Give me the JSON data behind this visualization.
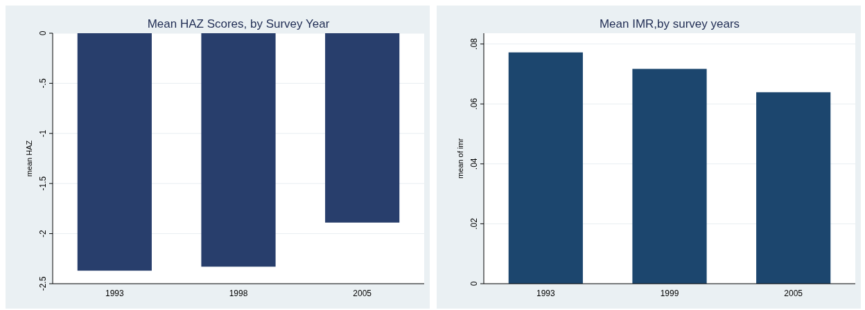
{
  "chart_data": [
    {
      "type": "bar",
      "title": "Mean HAZ Scores, by Survey Year",
      "ylabel": "mean HAZ",
      "categories": [
        "1993",
        "1998",
        "2005"
      ],
      "values": [
        -2.37,
        -2.33,
        -1.89
      ],
      "color": "#283e6c",
      "ylim": [
        -2.5,
        0
      ],
      "yticks": [
        {
          "value": -2.5,
          "label": "-2.5"
        },
        {
          "value": -2,
          "label": "-2"
        },
        {
          "value": -1.5,
          "label": "-1.5"
        },
        {
          "value": -1,
          "label": "-1"
        },
        {
          "value": -0.5,
          "label": "-.5"
        },
        {
          "value": 0,
          "label": "0"
        }
      ],
      "grid": "y"
    },
    {
      "type": "bar",
      "title": "Mean IMR,by survey years",
      "ylabel": "mean of imr",
      "categories": [
        "1993",
        "1999",
        "2005"
      ],
      "values": [
        0.0772,
        0.0717,
        0.0639
      ],
      "color": "#1c466e",
      "ylim": [
        0,
        0.0836
      ],
      "yticks": [
        {
          "value": 0,
          "label": "0"
        },
        {
          "value": 0.02,
          "label": ".02"
        },
        {
          "value": 0.04,
          "label": ".04"
        },
        {
          "value": 0.06,
          "label": ".06"
        },
        {
          "value": 0.08,
          "label": ".08"
        }
      ],
      "grid": "y"
    }
  ]
}
